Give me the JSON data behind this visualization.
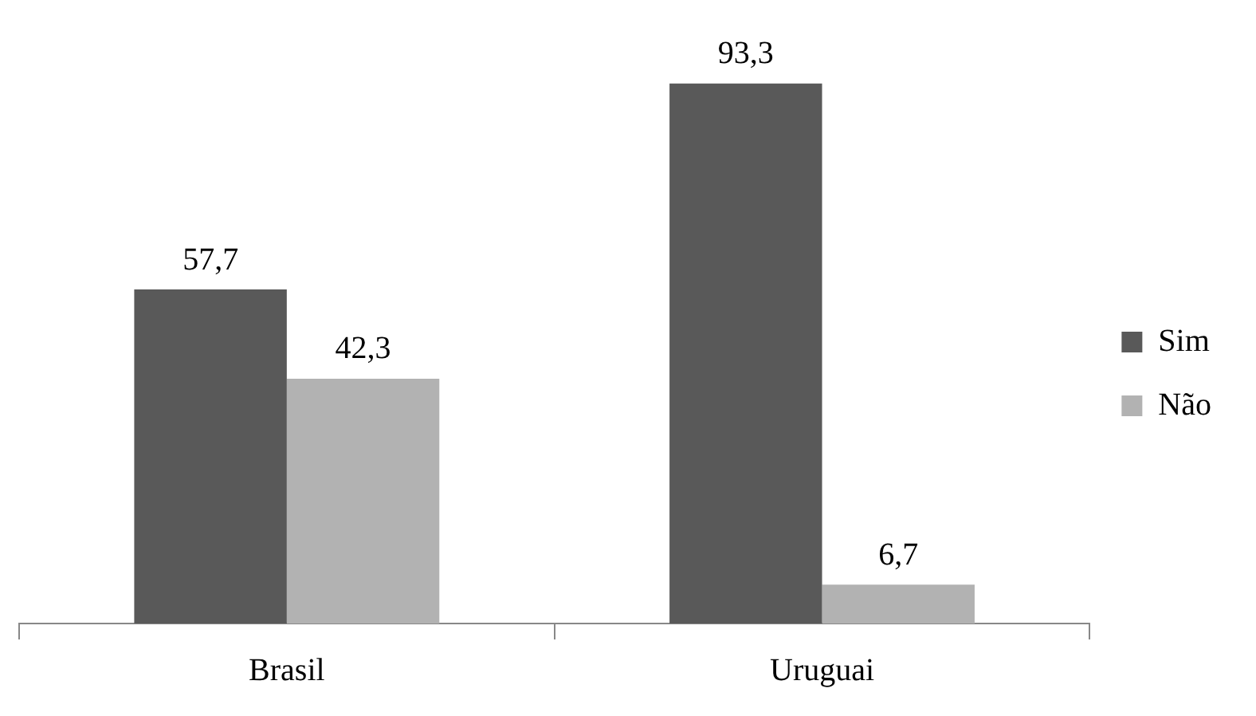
{
  "chart_data": {
    "type": "bar",
    "categories": [
      "Brasil",
      "Uruguai"
    ],
    "legend": "right",
    "series": [
      {
        "name": "Sim",
        "color": "#595959",
        "values": [
          57.7,
          93.3
        ],
        "value_labels": [
          "57,7",
          "93,3"
        ]
      },
      {
        "name": "Não",
        "color": "#b2b2b2",
        "values": [
          42.3,
          6.7
        ],
        "value_labels": [
          "42,3",
          "6,7"
        ]
      }
    ]
  }
}
